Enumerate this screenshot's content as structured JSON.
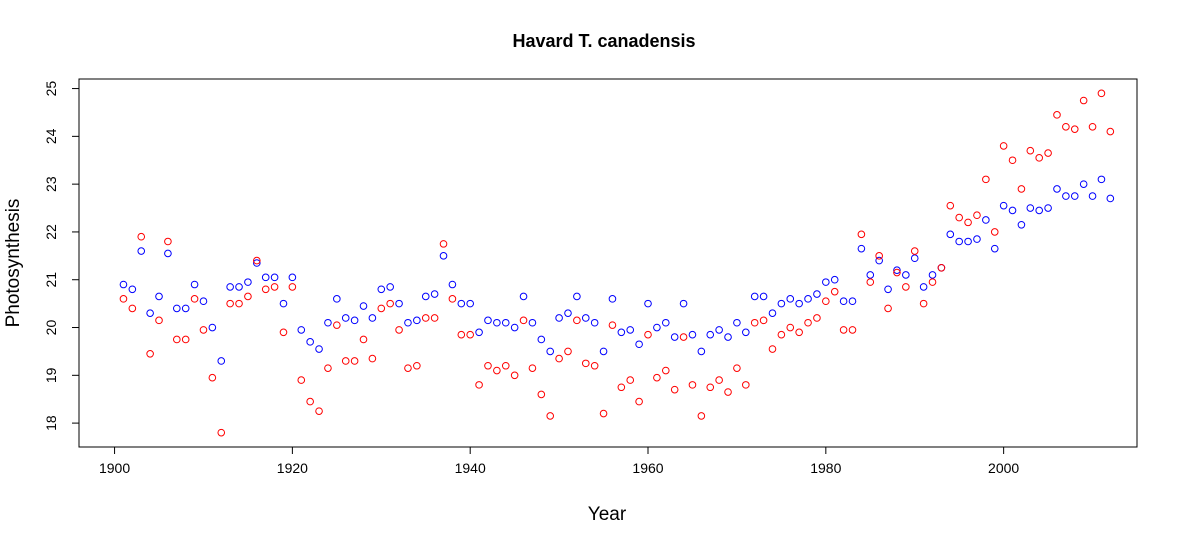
{
  "chart_data": {
    "type": "scatter",
    "title": "Havard T. canadensis",
    "xlabel": "Year",
    "ylabel": "Photosynthesis",
    "xlim": [
      1896,
      2015
    ],
    "ylim": [
      17.5,
      25.2
    ],
    "xticks": [
      1900,
      1920,
      1940,
      1960,
      1980,
      2000
    ],
    "yticks": [
      18,
      19,
      20,
      21,
      22,
      23,
      24,
      25
    ],
    "grid": false,
    "legend": "none",
    "series": [
      {
        "color": "#0000ff",
        "x": [
          1901,
          1902,
          1903,
          1904,
          1905,
          1906,
          1907,
          1908,
          1909,
          1910,
          1911,
          1912,
          1913,
          1914,
          1915,
          1916,
          1917,
          1918,
          1919,
          1920,
          1921,
          1922,
          1923,
          1924,
          1925,
          1926,
          1927,
          1928,
          1929,
          1930,
          1931,
          1932,
          1933,
          1934,
          1935,
          1936,
          1937,
          1938,
          1939,
          1940,
          1941,
          1942,
          1943,
          1944,
          1945,
          1946,
          1947,
          1948,
          1949,
          1950,
          1951,
          1952,
          1953,
          1954,
          1955,
          1956,
          1957,
          1958,
          1959,
          1960,
          1961,
          1962,
          1963,
          1964,
          1965,
          1966,
          1967,
          1968,
          1969,
          1970,
          1971,
          1972,
          1973,
          1974,
          1975,
          1976,
          1977,
          1978,
          1979,
          1980,
          1981,
          1982,
          1983,
          1984,
          1985,
          1986,
          1987,
          1988,
          1989,
          1990,
          1991,
          1992,
          1993,
          1994,
          1995,
          1996,
          1997,
          1998,
          1999,
          2000,
          2001,
          2002,
          2003,
          2004,
          2005,
          2006,
          2007,
          2008,
          2009,
          2010,
          2011,
          2012
        ],
        "y": [
          20.9,
          20.8,
          21.6,
          20.3,
          20.65,
          21.55,
          20.4,
          20.4,
          20.9,
          20.55,
          20.0,
          19.3,
          20.85,
          20.85,
          20.95,
          21.35,
          21.05,
          21.05,
          20.5,
          21.05,
          19.95,
          19.7,
          19.55,
          20.1,
          20.6,
          20.2,
          20.15,
          20.45,
          20.2,
          20.8,
          20.85,
          20.5,
          20.1,
          20.15,
          20.65,
          20.7,
          21.5,
          20.9,
          20.5,
          20.5,
          19.9,
          20.15,
          20.1,
          20.1,
          20.0,
          20.65,
          20.1,
          19.75,
          19.5,
          20.2,
          20.3,
          20.65,
          20.2,
          20.1,
          19.5,
          20.6,
          19.9,
          19.95,
          19.65,
          20.5,
          20.0,
          20.1,
          19.8,
          20.5,
          19.85,
          19.5,
          19.85,
          19.95,
          19.8,
          20.1,
          19.9,
          20.65,
          20.65,
          20.3,
          20.5,
          20.6,
          20.5,
          20.6,
          20.7,
          20.95,
          21.0,
          20.55,
          20.55,
          21.65,
          21.1,
          21.4,
          20.8,
          21.2,
          21.1,
          21.45,
          20.85,
          21.1,
          21.25,
          21.95,
          21.8,
          21.8,
          21.85,
          22.25,
          21.65,
          22.55,
          22.45,
          22.15,
          22.5,
          22.45,
          22.5,
          22.9,
          22.75,
          22.75,
          23.0,
          22.75,
          23.1,
          22.7
        ]
      },
      {
        "color": "#ff0000",
        "x": [
          1901,
          1902,
          1903,
          1904,
          1905,
          1906,
          1907,
          1908,
          1909,
          1910,
          1911,
          1912,
          1913,
          1914,
          1915,
          1916,
          1917,
          1918,
          1919,
          1920,
          1921,
          1922,
          1923,
          1924,
          1925,
          1926,
          1927,
          1928,
          1929,
          1930,
          1931,
          1932,
          1933,
          1934,
          1935,
          1936,
          1937,
          1938,
          1939,
          1940,
          1941,
          1942,
          1943,
          1944,
          1945,
          1946,
          1947,
          1948,
          1949,
          1950,
          1951,
          1952,
          1953,
          1954,
          1955,
          1956,
          1957,
          1958,
          1959,
          1960,
          1961,
          1962,
          1963,
          1964,
          1965,
          1966,
          1967,
          1968,
          1969,
          1970,
          1971,
          1972,
          1973,
          1974,
          1975,
          1976,
          1977,
          1978,
          1979,
          1980,
          1981,
          1982,
          1983,
          1984,
          1985,
          1986,
          1987,
          1988,
          1989,
          1990,
          1991,
          1992,
          1993,
          1994,
          1995,
          1996,
          1997,
          1998,
          1999,
          2000,
          2001,
          2002,
          2003,
          2004,
          2005,
          2006,
          2007,
          2008,
          2009,
          2010,
          2011,
          2012
        ],
        "y": [
          20.6,
          20.4,
          21.9,
          19.45,
          20.15,
          21.8,
          19.75,
          19.75,
          20.6,
          19.95,
          18.95,
          17.8,
          20.5,
          20.5,
          20.65,
          21.4,
          20.8,
          20.85,
          19.9,
          20.85,
          18.9,
          18.45,
          18.25,
          19.15,
          20.05,
          19.3,
          19.3,
          19.75,
          19.35,
          20.4,
          20.5,
          19.95,
          19.15,
          19.2,
          20.2,
          20.2,
          21.75,
          20.6,
          19.85,
          19.85,
          18.8,
          19.2,
          19.1,
          19.2,
          19.0,
          20.15,
          19.15,
          18.6,
          18.15,
          19.35,
          19.5,
          20.15,
          19.25,
          19.2,
          18.2,
          20.05,
          18.75,
          18.9,
          18.45,
          19.85,
          18.95,
          19.1,
          18.7,
          19.8,
          18.8,
          18.15,
          18.75,
          18.9,
          18.65,
          19.15,
          18.8,
          20.1,
          20.15,
          19.55,
          19.85,
          20.0,
          19.9,
          20.1,
          20.2,
          20.55,
          20.75,
          19.95,
          19.95,
          21.95,
          20.95,
          21.5,
          20.4,
          21.15,
          20.85,
          21.6,
          20.5,
          20.95,
          21.25,
          22.55,
          22.3,
          22.2,
          22.35,
          23.1,
          22.0,
          23.8,
          23.5,
          22.9,
          23.7,
          23.55,
          23.65,
          24.45,
          24.2,
          24.15,
          24.75,
          24.2,
          24.9,
          24.1
        ]
      }
    ]
  }
}
